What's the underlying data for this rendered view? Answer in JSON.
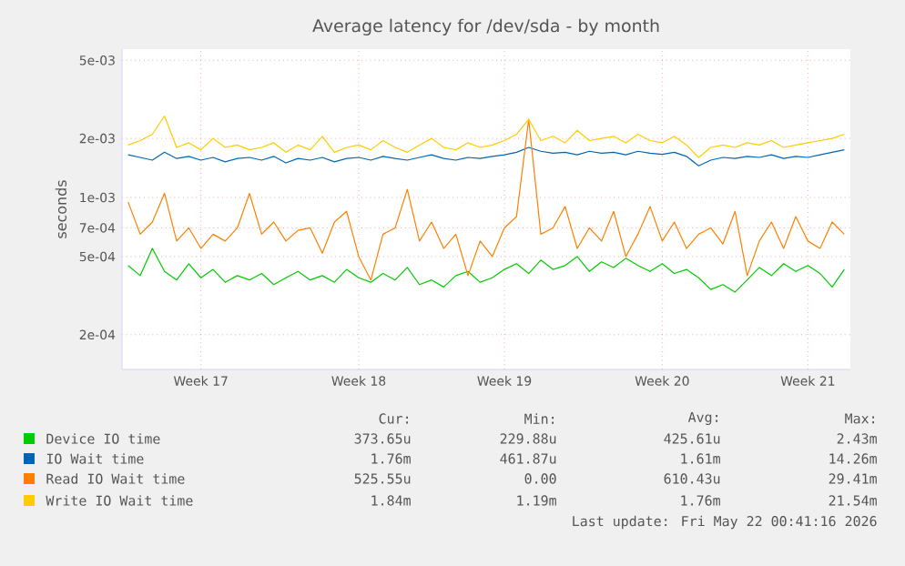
{
  "chart_data": {
    "type": "line",
    "title": "Average latency for /dev/sda - by month",
    "ylabel": "seconds",
    "categories": [
      null,
      null,
      null,
      null,
      null,
      null,
      "Week 17",
      null,
      null,
      null,
      null,
      null,
      null,
      null,
      null,
      null,
      null,
      null,
      null,
      "Week 18",
      null,
      null,
      null,
      null,
      null,
      null,
      null,
      null,
      null,
      null,
      null,
      "Week 19",
      null,
      null,
      null,
      null,
      null,
      null,
      null,
      null,
      null,
      null,
      null,
      null,
      "Week 20",
      null,
      null,
      null,
      null,
      null,
      null,
      null,
      null,
      null,
      null,
      null,
      "Week 21",
      null,
      null,
      null
    ],
    "series": [
      {
        "name": "Device IO time",
        "color": "#00cc00",
        "values": [
          0.00045,
          0.0004,
          0.00055,
          0.00042,
          0.00038,
          0.00046,
          0.00039,
          0.00043,
          0.00037,
          0.0004,
          0.00038,
          0.00041,
          0.00036,
          0.00039,
          0.00042,
          0.00038,
          0.0004,
          0.00037,
          0.00043,
          0.00039,
          0.00037,
          0.00041,
          0.00038,
          0.00044,
          0.00036,
          0.00038,
          0.00035,
          0.0004,
          0.00042,
          0.00037,
          0.00039,
          0.00043,
          0.00046,
          0.00041,
          0.00048,
          0.00043,
          0.00045,
          0.0005,
          0.00042,
          0.00047,
          0.00044,
          0.00049,
          0.00045,
          0.00042,
          0.00046,
          0.00041,
          0.00043,
          0.00039,
          0.00034,
          0.00036,
          0.00033,
          0.00038,
          0.00044,
          0.0004,
          0.00046,
          0.00042,
          0.00045,
          0.00041,
          0.00035,
          0.00043
        ]
      },
      {
        "name": "IO Wait time",
        "color": "#0066b3",
        "values": [
          0.00165,
          0.0016,
          0.00155,
          0.0017,
          0.00158,
          0.00162,
          0.00155,
          0.0016,
          0.00152,
          0.00158,
          0.0016,
          0.00155,
          0.00162,
          0.0015,
          0.00158,
          0.00155,
          0.0016,
          0.00152,
          0.00158,
          0.0016,
          0.00155,
          0.00162,
          0.00158,
          0.00155,
          0.0016,
          0.00165,
          0.00158,
          0.00155,
          0.0016,
          0.00158,
          0.00162,
          0.00165,
          0.0017,
          0.0018,
          0.00172,
          0.00168,
          0.0017,
          0.00165,
          0.00172,
          0.00168,
          0.0017,
          0.00165,
          0.00172,
          0.00168,
          0.00166,
          0.0017,
          0.00162,
          0.00145,
          0.00155,
          0.0016,
          0.00158,
          0.00162,
          0.0016,
          0.00165,
          0.00158,
          0.00162,
          0.0016,
          0.00165,
          0.0017,
          0.00175
        ]
      },
      {
        "name": "Read IO Wait time",
        "color": "#ff8000",
        "values": [
          0.00095,
          0.00065,
          0.00075,
          0.00105,
          0.0006,
          0.0007,
          0.00055,
          0.00065,
          0.0006,
          0.0007,
          0.00105,
          0.00065,
          0.00075,
          0.0006,
          0.00068,
          0.0007,
          0.00052,
          0.00075,
          0.00085,
          0.0005,
          0.00038,
          0.00065,
          0.0007,
          0.0011,
          0.0006,
          0.00075,
          0.00055,
          0.00065,
          0.0004,
          0.0006,
          0.0005,
          0.0007,
          0.0008,
          0.0025,
          0.00065,
          0.0007,
          0.0009,
          0.00055,
          0.0007,
          0.0006,
          0.00085,
          0.0005,
          0.00065,
          0.0009,
          0.0006,
          0.00075,
          0.00055,
          0.00065,
          0.0007,
          0.00058,
          0.00085,
          0.0004,
          0.0006,
          0.00075,
          0.00055,
          0.0008,
          0.0006,
          0.00055,
          0.00075,
          0.00065
        ]
      },
      {
        "name": "Write IO Wait time",
        "color": "#ffcc00",
        "values": [
          0.00185,
          0.00195,
          0.0021,
          0.0026,
          0.0018,
          0.0019,
          0.00175,
          0.002,
          0.0018,
          0.00185,
          0.00175,
          0.0018,
          0.0019,
          0.0017,
          0.00185,
          0.00175,
          0.00205,
          0.0017,
          0.0018,
          0.00185,
          0.00175,
          0.00195,
          0.0018,
          0.0017,
          0.00185,
          0.002,
          0.0018,
          0.00175,
          0.0019,
          0.0018,
          0.00185,
          0.00195,
          0.0021,
          0.0025,
          0.00195,
          0.00205,
          0.0019,
          0.0022,
          0.00195,
          0.002,
          0.00205,
          0.0019,
          0.0021,
          0.00195,
          0.0019,
          0.00205,
          0.00185,
          0.0016,
          0.0018,
          0.00185,
          0.0018,
          0.0019,
          0.00185,
          0.00195,
          0.0018,
          0.00185,
          0.0019,
          0.00195,
          0.002,
          0.0021
        ]
      }
    ],
    "ylim": [
      0.000133,
      0.0057
    ],
    "yticks": [
      {
        "value": 0.0002,
        "label": "2e-04"
      },
      {
        "value": 0.0005,
        "label": "5e-04"
      },
      {
        "value": 0.0007,
        "label": "7e-04"
      },
      {
        "value": 0.001,
        "label": "1e-03"
      },
      {
        "value": 0.002,
        "label": "2e-03"
      },
      {
        "value": 0.005,
        "label": "5e-03"
      }
    ],
    "log": "y",
    "grid": true,
    "legend": "bottom",
    "marker": "none",
    "line_style": "solid",
    "annotations": [
      "Cur:",
      "Min:",
      "Avg:",
      "Max:",
      "373.65u",
      "229.88u",
      "425.61u",
      "2.43m",
      "1.76m",
      "461.87u",
      "1.61m",
      "14.26m",
      "525.55u",
      "0.00",
      "610.43u",
      "29.41m",
      "1.84m",
      "1.19m",
      "1.76m",
      "21.54m",
      "Last update: Fri May 22 00:41:16 2026"
    ]
  }
}
